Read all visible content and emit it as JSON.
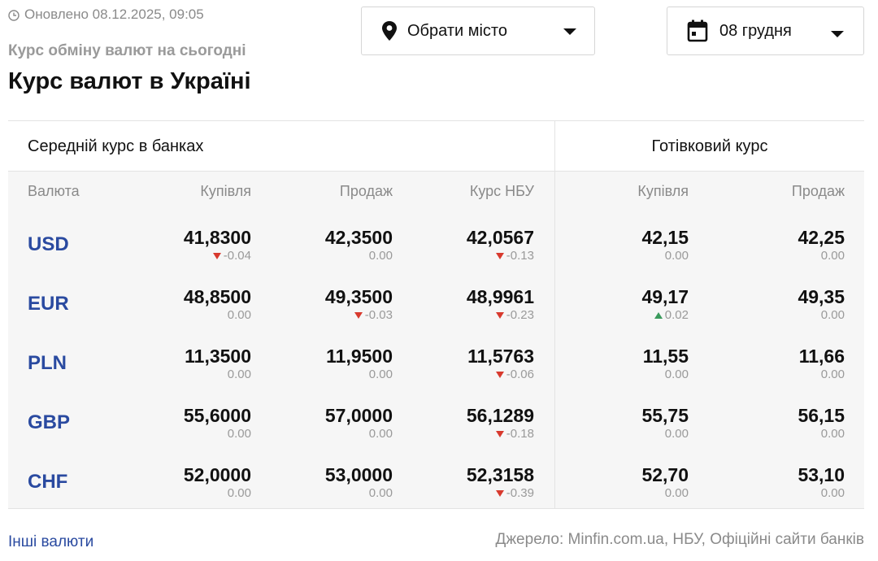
{
  "header": {
    "updated": "Оновлено 08.12.2025, 09:05",
    "subtitle": "Курс обміну валют на сьогодні",
    "title": "Курс валют в Україні"
  },
  "city_select": {
    "label": "Обрати місто",
    "icon": "location-pin-icon"
  },
  "date_select": {
    "label": "08 грудня",
    "icon": "calendar-icon"
  },
  "table": {
    "group_average": "Середній курс в банках",
    "group_cash": "Готівковий курс",
    "columns": {
      "currency": "Валюта",
      "buy": "Купівля",
      "sell": "Продаж",
      "nbu": "Курс НБУ",
      "cash_buy": "Купівля",
      "cash_sell": "Продаж"
    },
    "rows": [
      {
        "currency": "USD",
        "buy": {
          "value": "41,8300",
          "change": "-0.04",
          "dir": "down"
        },
        "sell": {
          "value": "42,3500",
          "change": "0.00",
          "dir": "none"
        },
        "nbu": {
          "value": "42,0567",
          "change": "-0.13",
          "dir": "down"
        },
        "cash_buy": {
          "value": "42,15",
          "change": "0.00",
          "dir": "none"
        },
        "cash_sell": {
          "value": "42,25",
          "change": "0.00",
          "dir": "none"
        }
      },
      {
        "currency": "EUR",
        "buy": {
          "value": "48,8500",
          "change": "0.00",
          "dir": "none"
        },
        "sell": {
          "value": "49,3500",
          "change": "-0.03",
          "dir": "down"
        },
        "nbu": {
          "value": "48,9961",
          "change": "-0.23",
          "dir": "down"
        },
        "cash_buy": {
          "value": "49,17",
          "change": "0.02",
          "dir": "up"
        },
        "cash_sell": {
          "value": "49,35",
          "change": "0.00",
          "dir": "none"
        }
      },
      {
        "currency": "PLN",
        "buy": {
          "value": "11,3500",
          "change": "0.00",
          "dir": "none"
        },
        "sell": {
          "value": "11,9500",
          "change": "0.00",
          "dir": "none"
        },
        "nbu": {
          "value": "11,5763",
          "change": "-0.06",
          "dir": "down"
        },
        "cash_buy": {
          "value": "11,55",
          "change": "0.00",
          "dir": "none"
        },
        "cash_sell": {
          "value": "11,66",
          "change": "0.00",
          "dir": "none"
        }
      },
      {
        "currency": "GBP",
        "buy": {
          "value": "55,6000",
          "change": "0.00",
          "dir": "none"
        },
        "sell": {
          "value": "57,0000",
          "change": "0.00",
          "dir": "none"
        },
        "nbu": {
          "value": "56,1289",
          "change": "-0.18",
          "dir": "down"
        },
        "cash_buy": {
          "value": "55,75",
          "change": "0.00",
          "dir": "none"
        },
        "cash_sell": {
          "value": "56,15",
          "change": "0.00",
          "dir": "none"
        }
      },
      {
        "currency": "CHF",
        "buy": {
          "value": "52,0000",
          "change": "0.00",
          "dir": "none"
        },
        "sell": {
          "value": "53,0000",
          "change": "0.00",
          "dir": "none"
        },
        "nbu": {
          "value": "52,3158",
          "change": "-0.39",
          "dir": "down"
        },
        "cash_buy": {
          "value": "52,70",
          "change": "0.00",
          "dir": "none"
        },
        "cash_sell": {
          "value": "53,10",
          "change": "0.00",
          "dir": "none"
        }
      }
    ]
  },
  "footer": {
    "other_link": "Інші валюти",
    "source": "Джерело: Minfin.com.ua, НБУ, Офіційні сайти банків"
  },
  "colors": {
    "link": "#2a4aa0",
    "down": "#d83a2e",
    "up": "#3a9a5c"
  }
}
